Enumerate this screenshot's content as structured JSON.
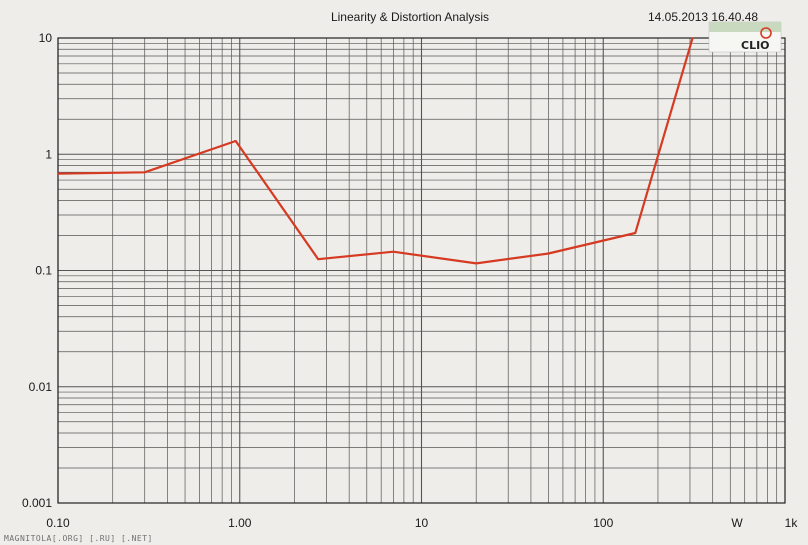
{
  "chart_data": {
    "type": "line",
    "title": "Linearity & Distortion Analysis",
    "timestamp": "14.05.2013 16.40.48",
    "logo": "CLIO",
    "x_scale": "log",
    "y_scale": "log",
    "xlim": [
      0.1,
      1000
    ],
    "ylim": [
      0.001,
      10
    ],
    "grid": true,
    "x_tick_labels": [
      {
        "value": 0.1,
        "label": "0.10"
      },
      {
        "value": 1,
        "label": "1.00"
      },
      {
        "value": 10,
        "label": "10"
      },
      {
        "value": 100,
        "label": "100"
      },
      {
        "value": 1000,
        "label": "1k"
      }
    ],
    "x_unit_label": "W",
    "y_tick_labels": [
      {
        "value": 10,
        "label": "10"
      },
      {
        "value": 1,
        "label": "1"
      },
      {
        "value": 0.1,
        "label": "0.1"
      },
      {
        "value": 0.01,
        "label": "0.01"
      },
      {
        "value": 0.001,
        "label": "0.001"
      }
    ],
    "series": [
      {
        "color": "#d63a22",
        "x": [
          0.1,
          0.3,
          0.95,
          2.7,
          7.0,
          20,
          50,
          150,
          310
        ],
        "y": [
          0.68,
          0.7,
          1.3,
          0.125,
          0.145,
          0.115,
          0.14,
          0.21,
          10
        ]
      }
    ]
  },
  "watermark": "MAGNITOLA[.ORG] [.RU] [.NET]",
  "colors": {
    "background": "#eeede9",
    "grid": "#555555",
    "axis": "#222222",
    "curve": "#d63a22"
  }
}
